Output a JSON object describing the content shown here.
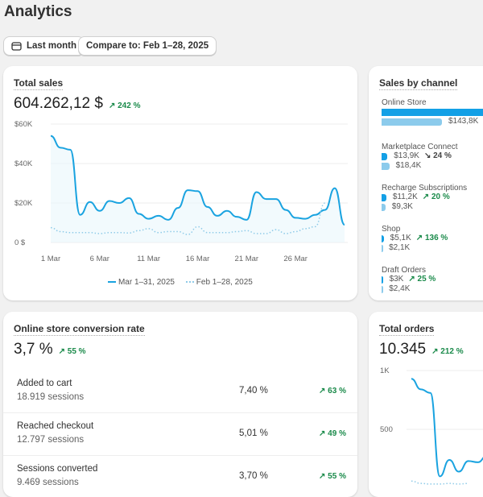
{
  "page": {
    "title": "Analytics"
  },
  "toolbar": {
    "date_label": "Last month",
    "compare_label": "Compare to: Feb 1–28, 2025"
  },
  "total_sales": {
    "title": "Total sales",
    "value": "604.262,12 $",
    "change": "242 %",
    "legend": [
      "Mar 1–31, 2025",
      "Feb 1–28, 2025"
    ],
    "chart_data": {
      "type": "line",
      "x_ticks": [
        "1 Mar",
        "6 Mar",
        "11 Mar",
        "16 Mar",
        "21 Mar",
        "26 Mar"
      ],
      "y_ticks": [
        "0 $",
        "$20K",
        "$40K",
        "$60K"
      ],
      "ylim": [
        0,
        60000
      ],
      "grid": true,
      "legend_position": "bottom",
      "series": [
        {
          "name": "Mar 1–31, 2025",
          "color": "#1aa3e0",
          "style": "solid",
          "values": [
            54000,
            48000,
            47000,
            14000,
            20500,
            16000,
            21000,
            20000,
            22500,
            14500,
            12000,
            13500,
            11500,
            17500,
            26500,
            26000,
            18000,
            13500,
            16000,
            13000,
            11500,
            25500,
            22000,
            22000,
            16500,
            12500,
            12000,
            14000,
            16500,
            27500,
            9000
          ]
        },
        {
          "name": "Feb 1–28, 2025",
          "color": "#8fcbe8",
          "style": "dotted",
          "values": [
            7500,
            5500,
            5000,
            5000,
            5000,
            4500,
            5000,
            5000,
            4800,
            6000,
            7000,
            5000,
            5500,
            5500,
            4000,
            8000,
            5000,
            5000,
            5000,
            5500,
            6000,
            4500,
            4500,
            6500,
            4500,
            5500,
            7000,
            8000,
            20000
          ]
        }
      ]
    }
  },
  "sales_by_channel": {
    "title": "Sales by channel",
    "channels": [
      {
        "name": "Online Store",
        "current": "",
        "previous": "$143,8K",
        "change": "",
        "dir": "",
        "cur_k": 300,
        "prev_k": 143.8
      },
      {
        "name": "Marketplace Connect",
        "current": "$13,9K",
        "previous": "$18,4K",
        "change": "24 %",
        "dir": "down",
        "cur_k": 13.9,
        "prev_k": 18.4
      },
      {
        "name": "Recharge Subscriptions",
        "current": "$11,2K",
        "previous": "$9,3K",
        "change": "20 %",
        "dir": "up",
        "cur_k": 11.2,
        "prev_k": 9.3
      },
      {
        "name": "Shop",
        "current": "$5,1K",
        "previous": "$2,1K",
        "change": "136 %",
        "dir": "up",
        "cur_k": 5.1,
        "prev_k": 2.1
      },
      {
        "name": "Draft Orders",
        "current": "$3K",
        "previous": "$2,4K",
        "change": "25 %",
        "dir": "up",
        "cur_k": 3,
        "prev_k": 2.4
      }
    ]
  },
  "conversion": {
    "title": "Online store conversion rate",
    "value": "3,7 %",
    "change": "55 %",
    "rows": [
      {
        "name": "Added to cart",
        "sessions": "18.919 sessions",
        "rate": "7,40 %",
        "change": "63 %"
      },
      {
        "name": "Reached checkout",
        "sessions": "12.797 sessions",
        "rate": "5,01 %",
        "change": "49 %"
      },
      {
        "name": "Sessions converted",
        "sessions": "9.469 sessions",
        "rate": "3,70 %",
        "change": "55 %"
      }
    ]
  },
  "total_orders": {
    "title": "Total orders",
    "value": "10.345",
    "change": "212 %",
    "chart_data": {
      "type": "line",
      "y_ticks": [
        "500",
        "1K"
      ],
      "grid": true,
      "series": [
        {
          "color": "#1aa3e0",
          "style": "solid",
          "values": [
            930,
            840,
            810,
            100,
            240,
            140,
            230,
            220,
            280
          ]
        },
        {
          "color": "#8fcbe8",
          "style": "dotted",
          "values": [
            60,
            40,
            35,
            35,
            40,
            35,
            40
          ]
        }
      ]
    }
  }
}
